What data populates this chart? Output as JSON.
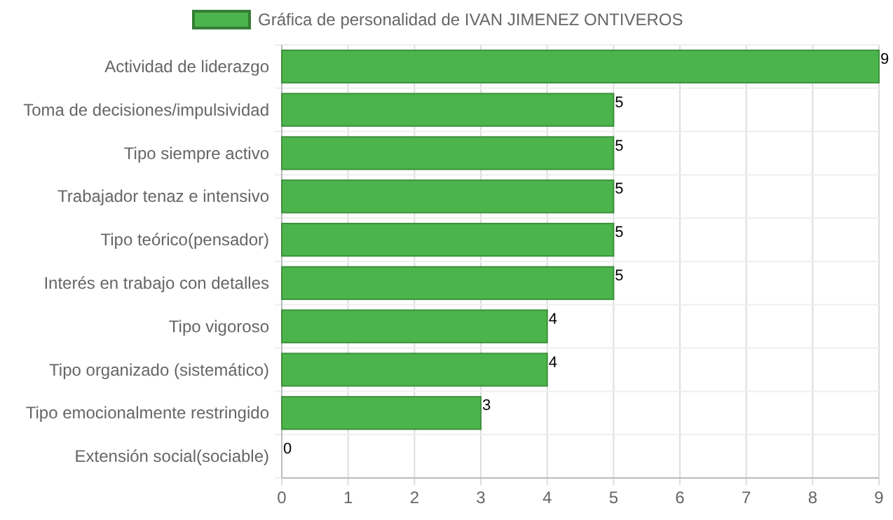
{
  "chart_data": {
    "type": "bar",
    "orientation": "horizontal",
    "categories": [
      "Actividad de liderazgo",
      "Toma de decisiones/impulsividad",
      "Tipo siempre activo",
      "Trabajador tenaz e intensivo",
      "Tipo teórico(pensador)",
      "Interés en trabajo con detalles",
      "Tipo vigoroso",
      "Tipo organizado (sistemático)",
      "Tipo emocionalmente restringido",
      "Extensión social(sociable)"
    ],
    "series": [
      {
        "name": "Gráfica de personalidad de IVAN JIMENEZ ONTIVEROS",
        "color": "#4cb44c",
        "values": [
          9,
          5,
          5,
          5,
          5,
          5,
          4,
          4,
          3,
          0
        ]
      }
    ],
    "xlim": [
      0,
      9
    ],
    "xticks": [
      0,
      1,
      2,
      3,
      4,
      5,
      6,
      7,
      8,
      9
    ],
    "grid": true,
    "legend": "top",
    "data_labels": true
  }
}
